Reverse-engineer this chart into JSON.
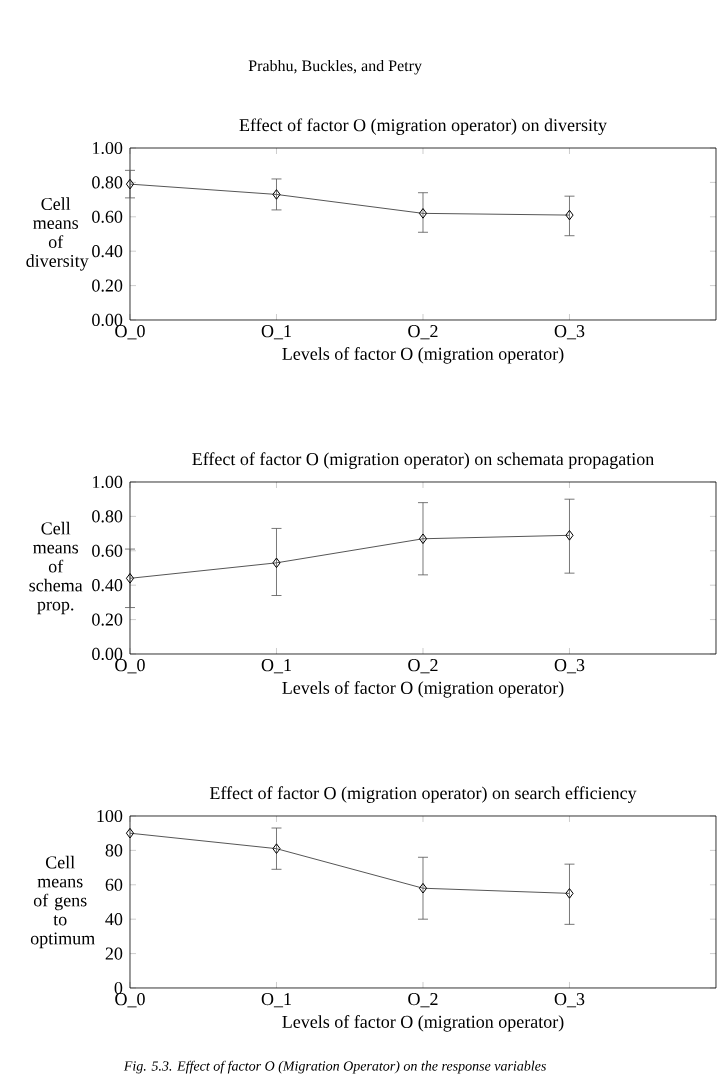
{
  "chart_data": [
    {
      "type": "line",
      "title": "Effect of factor O (migration operator) on diversity",
      "xlabel": "Levels of factor O (migration operator)",
      "ylabel": "Cell means of diversity",
      "categories": [
        "O_0",
        "O_1",
        "O_2",
        "O_3"
      ],
      "series": [
        {
          "color": "#555555",
          "values": [
            0.79,
            0.73,
            0.62,
            0.61
          ],
          "errors": [
            [
              0.71,
              0.87
            ],
            [
              0.64,
              0.82
            ],
            [
              0.51,
              0.74
            ],
            [
              0.49,
              0.72
            ]
          ]
        }
      ],
      "ylim": [
        0,
        1
      ],
      "yticks": [
        {
          "value": 0,
          "label": "0.00"
        },
        {
          "value": 0.2,
          "label": "0.20"
        },
        {
          "value": 0.4,
          "label": "0.40"
        },
        {
          "value": 0.6,
          "label": "0.60"
        },
        {
          "value": 0.8,
          "label": "0.80"
        },
        {
          "value": 1,
          "label": "1.00"
        }
      ],
      "marker": "diamond",
      "line_style": "solid",
      "annotations": [
        "Prabhu, Buckles, and Petry"
      ]
    },
    {
      "type": "line",
      "title": "Effect of factor O (migration operator) on schemata propagation",
      "xlabel": "Levels of factor O (migration operator)",
      "ylabel": "Cell means of schema prop.",
      "categories": [
        "O_0",
        "O_1",
        "O_2",
        "O_3"
      ],
      "series": [
        {
          "color": "#555555",
          "values": [
            0.44,
            0.53,
            0.67,
            0.69
          ],
          "errors": [
            [
              0.27,
              0.61
            ],
            [
              0.34,
              0.73
            ],
            [
              0.46,
              0.88
            ],
            [
              0.47,
              0.9
            ]
          ]
        }
      ],
      "ylim": [
        0,
        1
      ],
      "yticks": [
        {
          "value": 0,
          "label": "0.00"
        },
        {
          "value": 0.2,
          "label": "0.20"
        },
        {
          "value": 0.4,
          "label": "0.40"
        },
        {
          "value": 0.6,
          "label": "0.60"
        },
        {
          "value": 0.8,
          "label": "0.80"
        },
        {
          "value": 1,
          "label": "1.00"
        }
      ],
      "marker": "diamond",
      "line_style": "solid"
    },
    {
      "type": "line",
      "title": "Effect of factor O (migration operator) on search efficiency",
      "xlabel": "Levels of factor O (migration operator)",
      "ylabel": "Cell means of gens to optimum",
      "categories": [
        "O_0",
        "O_1",
        "O_2",
        "O_3"
      ],
      "series": [
        {
          "color": "#555555",
          "values": [
            90,
            81,
            58,
            55
          ],
          "errors": [
            null,
            [
              69,
              93
            ],
            [
              40,
              76
            ],
            [
              37,
              72
            ]
          ]
        }
      ],
      "ylim": [
        0,
        100
      ],
      "yticks": [
        0,
        20,
        40,
        60,
        80,
        100
      ],
      "marker": "diamond",
      "line_style": "solid",
      "annotations": [
        "Fig. 5.3. Effect of factor O (Migration Operator) on the response variables"
      ]
    }
  ]
}
